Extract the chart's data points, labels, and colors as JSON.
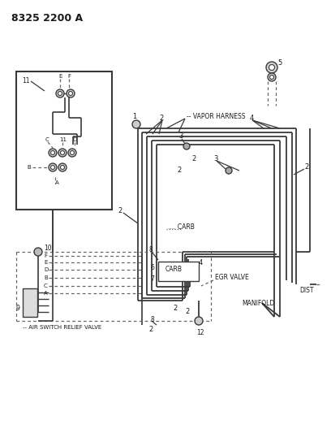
{
  "title": "8325 2200 A",
  "bg_color": "#ffffff",
  "line_color": "#3a3a3a",
  "text_color": "#1a1a1a",
  "fig_width": 4.08,
  "fig_height": 5.33,
  "dpi": 100,
  "labels": {
    "vapor_harness": "VAPOR HARNESS",
    "carb_center": "CARB",
    "carb_lower": "CARB",
    "egr_valve": "EGR VALVE",
    "manifold": "MANIFOLD",
    "dist": "DIST",
    "air_switch": "AIR SWITCH RELIEF VALVE"
  }
}
